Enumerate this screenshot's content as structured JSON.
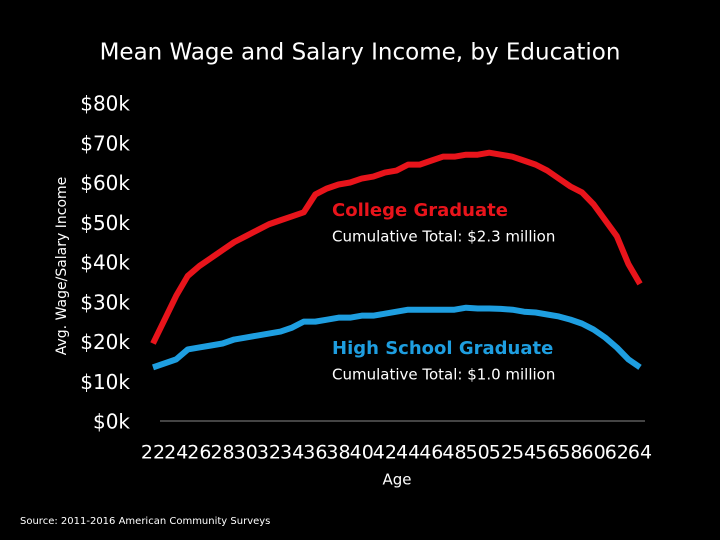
{
  "chart_data": {
    "type": "line",
    "title": "Mean Wage and Salary Income, by Education",
    "y_label": "Avg. Wage/Salary Income",
    "x_label": "Age",
    "source": "Source: 2011-2016 American Community Surveys",
    "x": [
      22,
      23,
      24,
      25,
      26,
      27,
      28,
      29,
      30,
      31,
      32,
      33,
      34,
      35,
      36,
      37,
      38,
      39,
      40,
      41,
      42,
      43,
      44,
      45,
      46,
      47,
      48,
      49,
      50,
      51,
      52,
      53,
      54,
      55,
      56,
      57,
      58,
      59,
      60,
      61,
      62,
      63,
      64
    ],
    "series": [
      {
        "name": "College Graduate",
        "color": "#e8141b",
        "annotation": "Cumulative Total: $2.3 million",
        "values": [
          20,
          26,
          32,
          37,
          39.5,
          41.5,
          43.5,
          45.5,
          47,
          48.5,
          50,
          51,
          52,
          53,
          57.5,
          59,
          60,
          60.5,
          61.5,
          62,
          63,
          63.5,
          65,
          65,
          66,
          67,
          67,
          67.5,
          67.5,
          68,
          67.5,
          67,
          66,
          65,
          63.5,
          61.5,
          59.5,
          58,
          55,
          51,
          47,
          40,
          35
        ]
      },
      {
        "name": "High School Graduate",
        "color": "#1e9ee0",
        "annotation": "Cumulative Total: $1.0 million",
        "values": [
          14,
          15,
          16,
          18.5,
          19,
          19.5,
          20,
          21,
          21.5,
          22,
          22.5,
          23,
          24,
          25.5,
          25.5,
          26,
          26.5,
          26.5,
          27,
          27,
          27.5,
          28,
          28.5,
          28.5,
          28.5,
          28.5,
          28.5,
          29,
          28.8,
          28.8,
          28.7,
          28.5,
          28,
          27.8,
          27.3,
          26.8,
          26,
          25,
          23.5,
          21.5,
          19,
          16,
          14
        ]
      }
    ],
    "xlim": [
      22,
      64
    ],
    "xticks": [
      22,
      24,
      26,
      28,
      30,
      32,
      34,
      36,
      38,
      40,
      42,
      44,
      46,
      48,
      50,
      52,
      54,
      56,
      58,
      60,
      62,
      64
    ],
    "ylim": [
      0,
      80
    ],
    "yticks": [
      {
        "value": 0,
        "label": "$0k"
      },
      {
        "value": 10,
        "label": "$10k"
      },
      {
        "value": 20,
        "label": "$20k"
      },
      {
        "value": 30,
        "label": "$30k"
      },
      {
        "value": 40,
        "label": "$40k"
      },
      {
        "value": 50,
        "label": "$50k"
      },
      {
        "value": 60,
        "label": "$60k"
      },
      {
        "value": 70,
        "label": "$70k"
      },
      {
        "value": 80,
        "label": "$80k"
      }
    ],
    "grid": false
  }
}
